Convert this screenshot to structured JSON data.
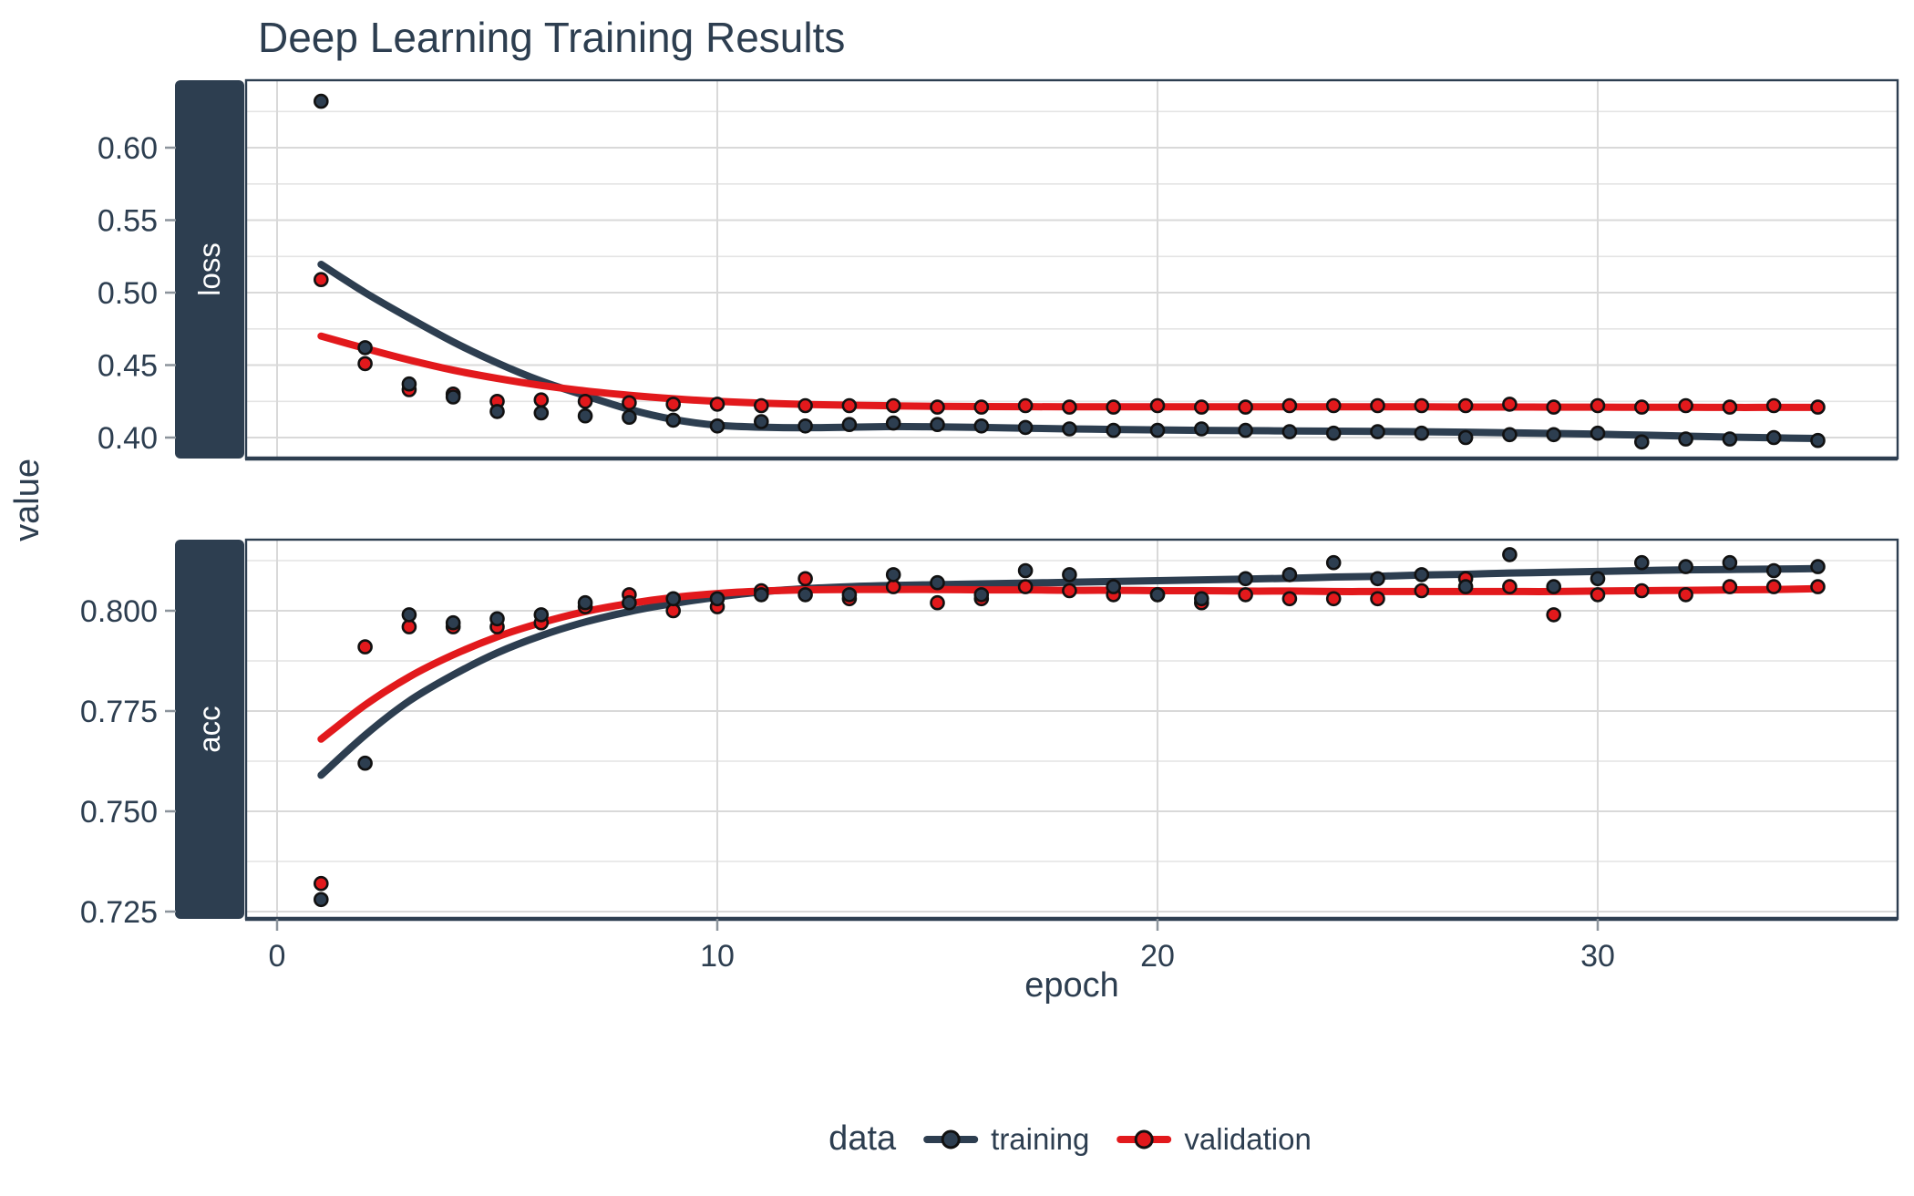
{
  "title": "Deep Learning Training Results",
  "y_axis_title": "value",
  "x_axis_title": "epoch",
  "legend": {
    "title": "data",
    "items": [
      {
        "label": "training",
        "color": "#2D3E50"
      },
      {
        "label": "validation",
        "color": "#E2191C"
      }
    ]
  },
  "colors": {
    "navy": "#2D3E50",
    "red": "#E2191C",
    "point_outline": "#111111",
    "grid_major": "#D9D9D9",
    "grid_minor": "#E4E4E4",
    "tick_mark": "#8C949C",
    "panel_border": "#2D3E50",
    "text": "#2D3E50",
    "strip_bg": "#2D3E50",
    "strip_text": "#FFFFFF",
    "background": "#FFFFFF"
  },
  "chart_data": {
    "type": "scatter",
    "title": "Deep Learning Training Results",
    "xlabel": "epoch",
    "ylabel": "value",
    "legend_position": "bottom",
    "grid": "on",
    "x": [
      1,
      2,
      3,
      4,
      5,
      6,
      7,
      8,
      9,
      10,
      11,
      12,
      13,
      14,
      15,
      16,
      17,
      18,
      19,
      20,
      21,
      22,
      23,
      24,
      25,
      26,
      27,
      28,
      29,
      30,
      31,
      32,
      33,
      34,
      35
    ],
    "x_ticks": [
      0,
      10,
      20,
      30
    ],
    "x_tick_labels": [
      "0",
      "10",
      "20",
      "30"
    ],
    "x_range": [
      -0.7,
      36.8
    ],
    "facets": [
      {
        "name": "loss",
        "y_ticks": [
          0.4,
          0.45,
          0.5,
          0.55,
          0.6
        ],
        "y_tick_labels": [
          "0.40",
          "0.45",
          "0.50",
          "0.55",
          "0.60"
        ],
        "y_minor": [
          0.425,
          0.475,
          0.525,
          0.575,
          0.625
        ],
        "ylim": [
          0.3855,
          0.6466
        ],
        "series": [
          {
            "name": "training",
            "color": "#2D3E50",
            "values": [
              0.632,
              0.462,
              0.437,
              0.428,
              0.418,
              0.417,
              0.415,
              0.414,
              0.412,
              0.408,
              0.411,
              0.408,
              0.409,
              0.41,
              0.409,
              0.408,
              0.407,
              0.406,
              0.405,
              0.405,
              0.406,
              0.405,
              0.404,
              0.403,
              0.404,
              0.403,
              0.4,
              0.402,
              0.402,
              0.403,
              0.397,
              0.399,
              0.399,
              0.4,
              0.398
            ],
            "smooth": [
              0.5195,
              0.5,
              0.4825,
              0.466,
              0.4515,
              0.439,
              0.429,
              0.4195,
              0.4125,
              0.4085,
              0.4072,
              0.4068,
              0.4072,
              0.4076,
              0.4074,
              0.407,
              0.4065,
              0.406,
              0.4056,
              0.4053,
              0.405,
              0.4048,
              0.4046,
              0.4044,
              0.4042,
              0.404,
              0.4037,
              0.4033,
              0.4028,
              0.4023,
              0.4017,
              0.401,
              0.4003,
              0.3998,
              0.3994
            ]
          },
          {
            "name": "validation",
            "color": "#E2191C",
            "values": [
              0.509,
              0.451,
              0.433,
              0.43,
              0.425,
              0.426,
              0.425,
              0.424,
              0.423,
              0.423,
              0.422,
              0.422,
              0.422,
              0.422,
              0.421,
              0.421,
              0.422,
              0.421,
              0.421,
              0.422,
              0.421,
              0.421,
              0.422,
              0.422,
              0.422,
              0.422,
              0.422,
              0.423,
              0.421,
              0.422,
              0.421,
              0.422,
              0.421,
              0.422,
              0.421
            ],
            "smooth": [
              0.47,
              0.4615,
              0.4535,
              0.4465,
              0.4408,
              0.436,
              0.4322,
              0.4292,
              0.4268,
              0.425,
              0.4238,
              0.4229,
              0.4223,
              0.4219,
              0.4216,
              0.4214,
              0.4213,
              0.4212,
              0.4212,
              0.4212,
              0.4212,
              0.4212,
              0.4212,
              0.4212,
              0.4212,
              0.4212,
              0.4211,
              0.4211,
              0.421,
              0.421,
              0.4209,
              0.4209,
              0.4208,
              0.4208,
              0.4208
            ]
          }
        ]
      },
      {
        "name": "acc",
        "y_ticks": [
          0.725,
          0.75,
          0.775,
          0.8
        ],
        "y_tick_labels": [
          "0.725",
          "0.750",
          "0.775",
          "0.800"
        ],
        "y_minor": [
          0.7375,
          0.7625,
          0.7875,
          0.8125
        ],
        "ylim": [
          0.7232,
          0.8177
        ],
        "series": [
          {
            "name": "training",
            "color": "#2D3E50",
            "values": [
              0.728,
              0.762,
              0.799,
              0.797,
              0.798,
              0.799,
              0.802,
              0.802,
              0.803,
              0.803,
              0.804,
              0.804,
              0.804,
              0.809,
              0.807,
              0.804,
              0.81,
              0.809,
              0.806,
              0.804,
              0.803,
              0.808,
              0.809,
              0.812,
              0.808,
              0.809,
              0.806,
              0.814,
              0.806,
              0.808,
              0.812,
              0.811,
              0.812,
              0.81,
              0.811
            ],
            "smooth": [
              0.759,
              0.769,
              0.7775,
              0.784,
              0.7895,
              0.7938,
              0.7972,
              0.7998,
              0.8018,
              0.8034,
              0.8047,
              0.8055,
              0.806,
              0.8063,
              0.8065,
              0.8067,
              0.8069,
              0.8071,
              0.8073,
              0.8075,
              0.8077,
              0.8079,
              0.8081,
              0.8084,
              0.8086,
              0.8089,
              0.8091,
              0.8094,
              0.8096,
              0.8098,
              0.81,
              0.8102,
              0.8103,
              0.8104,
              0.8105
            ]
          },
          {
            "name": "validation",
            "color": "#E2191C",
            "values": [
              0.732,
              0.791,
              0.796,
              0.796,
              0.796,
              0.797,
              0.801,
              0.804,
              0.8,
              0.801,
              0.805,
              0.808,
              0.803,
              0.806,
              0.802,
              0.803,
              0.806,
              0.805,
              0.804,
              0.804,
              0.802,
              0.804,
              0.803,
              0.803,
              0.803,
              0.805,
              0.808,
              0.806,
              0.799,
              0.804,
              0.805,
              0.804,
              0.806,
              0.806,
              0.806
            ],
            "smooth": [
              0.768,
              0.7765,
              0.7835,
              0.789,
              0.7935,
              0.797,
              0.7998,
              0.8018,
              0.8033,
              0.8043,
              0.8049,
              0.8052,
              0.8053,
              0.8053,
              0.8053,
              0.8052,
              0.8052,
              0.8051,
              0.8051,
              0.805,
              0.805,
              0.8049,
              0.8049,
              0.8048,
              0.8048,
              0.8048,
              0.8048,
              0.8048,
              0.8048,
              0.8049,
              0.805,
              0.8051,
              0.8052,
              0.8053,
              0.8055
            ]
          }
        ]
      }
    ]
  }
}
